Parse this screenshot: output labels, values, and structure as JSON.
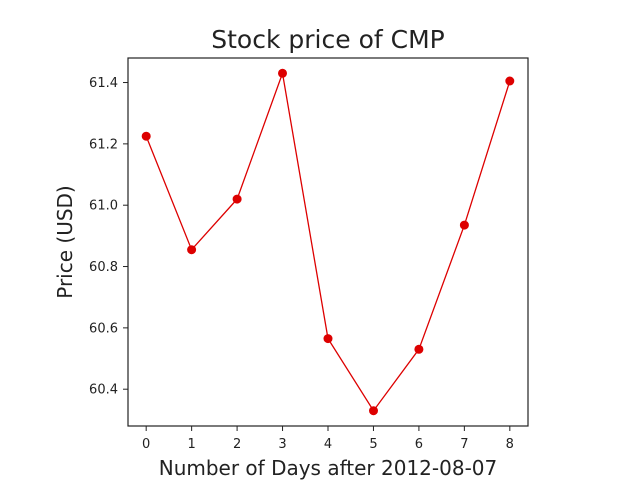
{
  "chart_data": {
    "type": "line",
    "title": "Stock price of CMP",
    "xlabel": "Number of Days after 2012-08-07",
    "ylabel": "Price (USD)",
    "x": [
      0,
      1,
      2,
      3,
      4,
      5,
      6,
      7,
      8
    ],
    "xticks": [
      "0",
      "1",
      "2",
      "3",
      "4",
      "5",
      "6",
      "7",
      "8"
    ],
    "xlim": [
      -0.4,
      8.4
    ],
    "yticks": [
      "60.4",
      "60.6",
      "60.8",
      "61.0",
      "61.2",
      "61.4"
    ],
    "ylim": [
      60.28,
      61.48
    ],
    "grid": false,
    "legend": "none",
    "series": [
      {
        "values": [
          61.225,
          60.855,
          61.02,
          61.43,
          60.565,
          60.33,
          60.53,
          60.935,
          61.405
        ],
        "color": "#dd0000",
        "marker": "circle"
      }
    ],
    "colors": {
      "line": "#dd0000",
      "marker": "#dd0000",
      "axes": "#222222"
    }
  }
}
